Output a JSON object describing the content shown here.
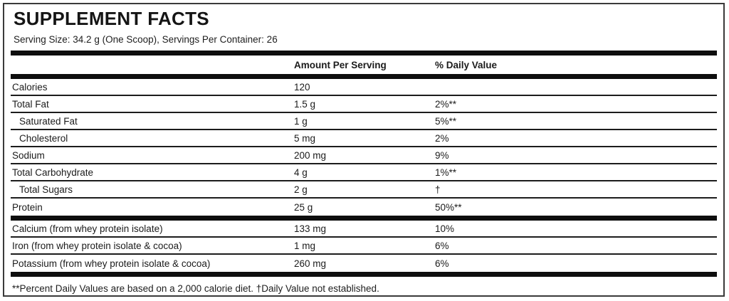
{
  "title": "SUPPLEMENT FACTS",
  "serving_info": "Serving Size: 34.2 g (One Scoop), Servings Per Container: 26",
  "columns": {
    "amount": "Amount Per Serving",
    "daily_value": "% Daily Value"
  },
  "rows": [
    {
      "name": "Calories",
      "amount": "120",
      "dv": ""
    },
    {
      "name": "Total Fat",
      "amount": "1.5 g",
      "dv": "2%**"
    },
    {
      "name": "Saturated Fat",
      "amount": "1 g",
      "dv": "5%**"
    },
    {
      "name": "Cholesterol",
      "amount": "5 mg",
      "dv": "2%"
    },
    {
      "name": "Sodium",
      "amount": "200 mg",
      "dv": "9%"
    },
    {
      "name": "Total Carbohydrate",
      "amount": "4 g",
      "dv": "1%**"
    },
    {
      "name": "Total Sugars",
      "amount": "2 g",
      "dv": "†"
    },
    {
      "name": "Protein",
      "amount": "25 g",
      "dv": "50%**"
    }
  ],
  "minerals": [
    {
      "name": "Calcium (from whey protein isolate)",
      "amount": "133 mg",
      "dv": "10%"
    },
    {
      "name": "Iron (from whey protein isolate & cocoa)",
      "amount": "1 mg",
      "dv": "6%"
    },
    {
      "name": "Potassium (from whey protein isolate & cocoa)",
      "amount": "260 mg",
      "dv": "6%"
    }
  ],
  "footnote": "**Percent Daily Values are based on a 2,000 calorie diet. †Daily Value not established.",
  "colors": {
    "ink": "#0e0e0e",
    "background": "#ffffff"
  }
}
